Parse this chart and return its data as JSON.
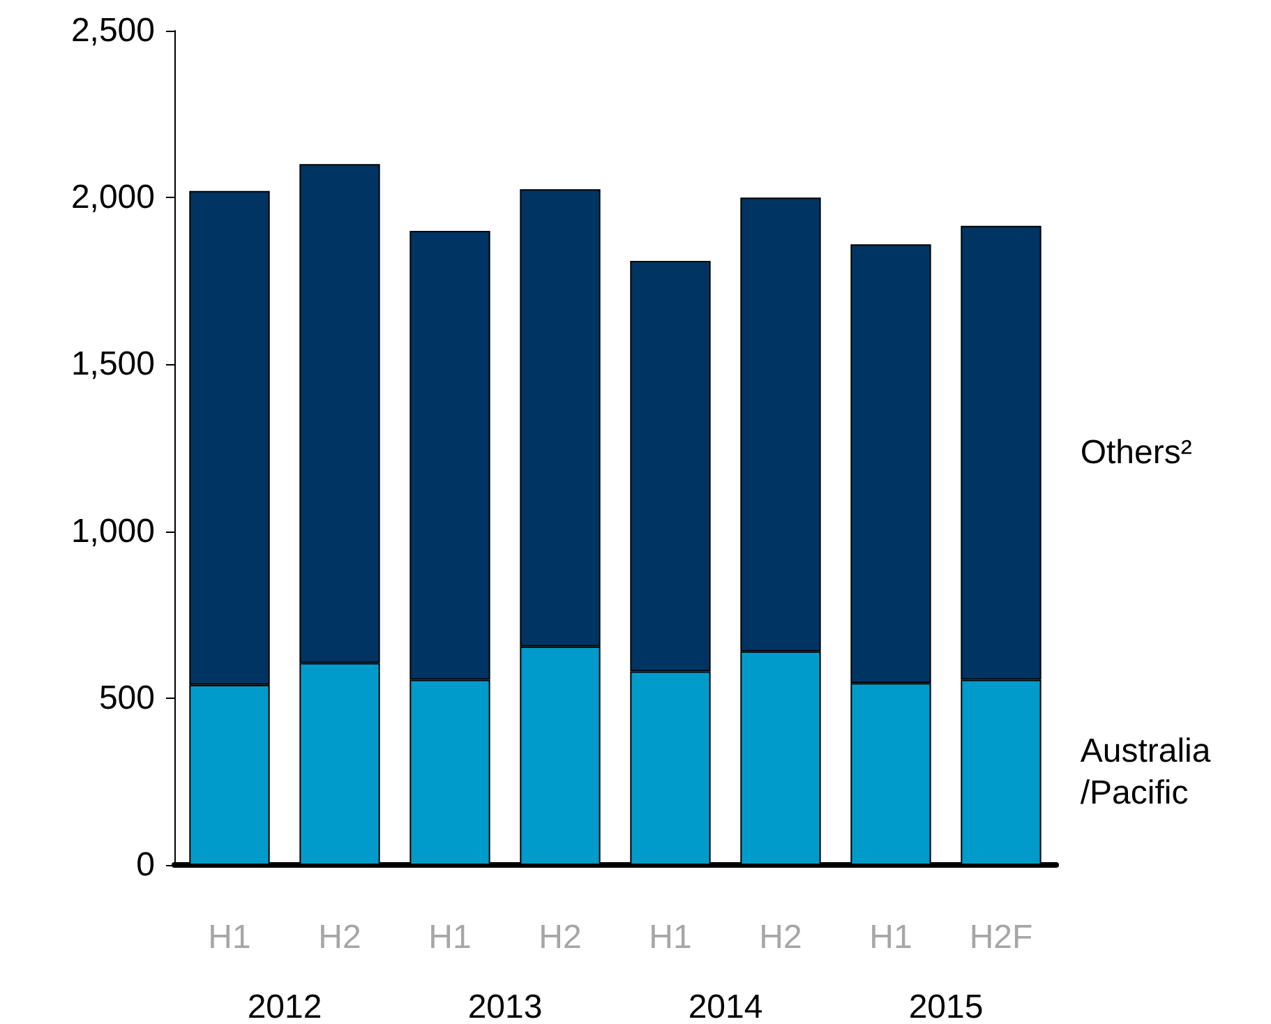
{
  "chart_data": {
    "type": "bar",
    "stacked": true,
    "categories": [
      "H1",
      "H2",
      "H1",
      "H2",
      "H1",
      "H2",
      "H1",
      "H2F"
    ],
    "series": [
      {
        "name": "Australia /Pacific",
        "color": "#009bcb",
        "values": [
          540,
          605,
          555,
          655,
          580,
          640,
          545,
          555
        ]
      },
      {
        "name": "Others²",
        "color": "#003462",
        "values": [
          1480,
          1495,
          1345,
          1370,
          1230,
          1360,
          1315,
          1360
        ]
      }
    ],
    "annotations": [
      "2012",
      "2013",
      "2014",
      "2015"
    ],
    "ylim": [
      0,
      2500
    ],
    "yticks": [
      0,
      500,
      {
        "value": 1000,
        "label": "1,000"
      },
      {
        "value": 1500,
        "label": "1,500"
      },
      {
        "value": 2000,
        "label": "2,000"
      },
      {
        "value": 2500,
        "label": "2,500"
      }
    ],
    "grid": false,
    "legend": false
  }
}
